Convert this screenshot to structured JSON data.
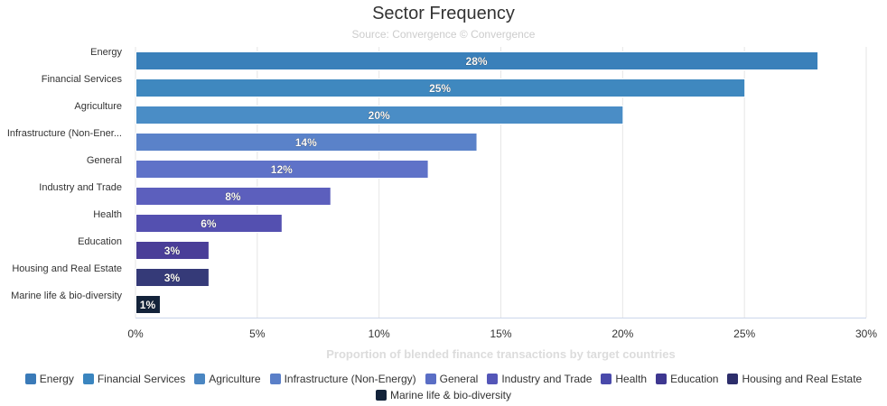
{
  "chart_data": {
    "type": "bar",
    "orientation": "horizontal",
    "title": "Sector Frequency",
    "subtitle": "Source: Convergence © Convergence",
    "xlabel": "Proportion of blended finance transactions by target countries",
    "ylabel": "",
    "xlim": [
      0,
      30
    ],
    "x_ticks": [
      "0%",
      "5%",
      "10%",
      "15%",
      "20%",
      "25%",
      "30%"
    ],
    "categories": [
      "Energy",
      "Financial Services",
      "Agriculture",
      "Infrastructure (Non-Ener...",
      "General",
      "Industry and Trade",
      "Health",
      "Education",
      "Housing and Real Estate",
      "Marine life & bio-diversity"
    ],
    "values": [
      28,
      25,
      20,
      14,
      12,
      8,
      6,
      3,
      3,
      1
    ],
    "data_labels": [
      "28%",
      "25%",
      "20%",
      "14%",
      "12%",
      "8%",
      "6%",
      "3%",
      "3%",
      "1%"
    ],
    "colors": [
      "#3a80ba",
      "#3f88bf",
      "#4a8dc6",
      "#5a82c9",
      "#5f72c8",
      "#5c5fbd",
      "#5450b0",
      "#4a3e98",
      "#353a78",
      "#13233a"
    ],
    "legend": [
      "Energy",
      "Financial Services",
      "Agriculture",
      "Infrastructure (Non-Energy)",
      "General",
      "Industry and Trade",
      "Health",
      "Education",
      "Housing and Real Estate",
      "Marine life & bio-diversity"
    ],
    "legend_colors": [
      "#3a7ab8",
      "#3a85bf",
      "#4a86c2",
      "#5a7fc8",
      "#5a6ec5",
      "#5456b8",
      "#4a4aab",
      "#3e3790",
      "#2d2e6b",
      "#13233a"
    ],
    "legend_placement": "bottom",
    "grid": true
  }
}
